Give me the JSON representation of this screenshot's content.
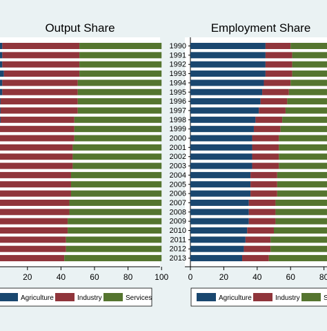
{
  "colors": {
    "background": "#eaf2f3",
    "agriculture": "#1a476f",
    "industry": "#90353b",
    "services": "#55752f"
  },
  "chart_data": [
    {
      "type": "bar",
      "orientation": "horizontal",
      "stacked": true,
      "title": "Output Share",
      "categories": [
        "1990",
        "1991",
        "1992",
        "1993",
        "1994",
        "1995",
        "1996",
        "1997",
        "1998",
        "1999",
        "2000",
        "2001",
        "2002",
        "2003",
        "2004",
        "2005",
        "2006",
        "2007",
        "2008",
        "2009",
        "2010",
        "2011",
        "2012",
        "2013"
      ],
      "series": [
        {
          "name": "Agriculture",
          "values": [
            5,
            5,
            5,
            6,
            5,
            5,
            4,
            4,
            4,
            3,
            3,
            3,
            3,
            3,
            3,
            3,
            3,
            2,
            2,
            2,
            2,
            2,
            2,
            2
          ]
        },
        {
          "name": "Industry",
          "values": [
            46,
            46,
            46,
            45,
            45,
            45,
            46,
            46,
            44,
            45,
            45,
            44,
            44,
            44,
            43,
            43,
            43,
            43,
            43,
            42,
            42,
            41,
            41,
            40
          ]
        },
        {
          "name": "Services",
          "values": [
            49,
            49,
            49,
            49,
            50,
            50,
            50,
            50,
            52,
            52,
            52,
            53,
            53,
            53,
            54,
            54,
            54,
            55,
            55,
            56,
            56,
            57,
            57,
            58
          ]
        }
      ],
      "xticks": [
        "20",
        "40",
        "60",
        "80",
        "100"
      ],
      "xlim": [
        0,
        100
      ],
      "legend": {
        "position": "bottom",
        "labels": [
          "Agriculture",
          "Industry",
          "Services"
        ]
      }
    },
    {
      "type": "bar",
      "orientation": "horizontal",
      "stacked": true,
      "title": "Employment Share",
      "categories": [
        "1990",
        "1991",
        "1992",
        "1993",
        "1994",
        "1995",
        "1996",
        "1997",
        "1998",
        "1999",
        "2000",
        "2001",
        "2002",
        "2003",
        "2004",
        "2005",
        "2006",
        "2007",
        "2008",
        "2009",
        "2010",
        "2011",
        "2012",
        "2013"
      ],
      "series": [
        {
          "name": "Agriculture",
          "values": [
            45,
            45,
            45,
            45,
            44,
            43,
            42,
            41,
            39,
            38,
            37,
            37,
            37,
            37,
            36,
            36,
            36,
            35,
            35,
            35,
            34,
            33,
            32,
            31
          ]
        },
        {
          "name": "Industry",
          "values": [
            15,
            16,
            16,
            16,
            16,
            16,
            16,
            16,
            16,
            16,
            16,
            16,
            16,
            16,
            16,
            16,
            16,
            16,
            16,
            16,
            16,
            15,
            16,
            16
          ]
        },
        {
          "name": "Services",
          "values": [
            40,
            39,
            39,
            39,
            40,
            41,
            42,
            43,
            45,
            46,
            47,
            47,
            47,
            47,
            48,
            48,
            48,
            49,
            49,
            49,
            50,
            52,
            52,
            53
          ]
        }
      ],
      "xticks": [
        "0",
        "20",
        "40",
        "60",
        "80"
      ],
      "xlim": [
        0,
        100
      ],
      "legend": {
        "position": "bottom",
        "labels": [
          "Agriculture",
          "Industry",
          "Services"
        ]
      }
    }
  ]
}
